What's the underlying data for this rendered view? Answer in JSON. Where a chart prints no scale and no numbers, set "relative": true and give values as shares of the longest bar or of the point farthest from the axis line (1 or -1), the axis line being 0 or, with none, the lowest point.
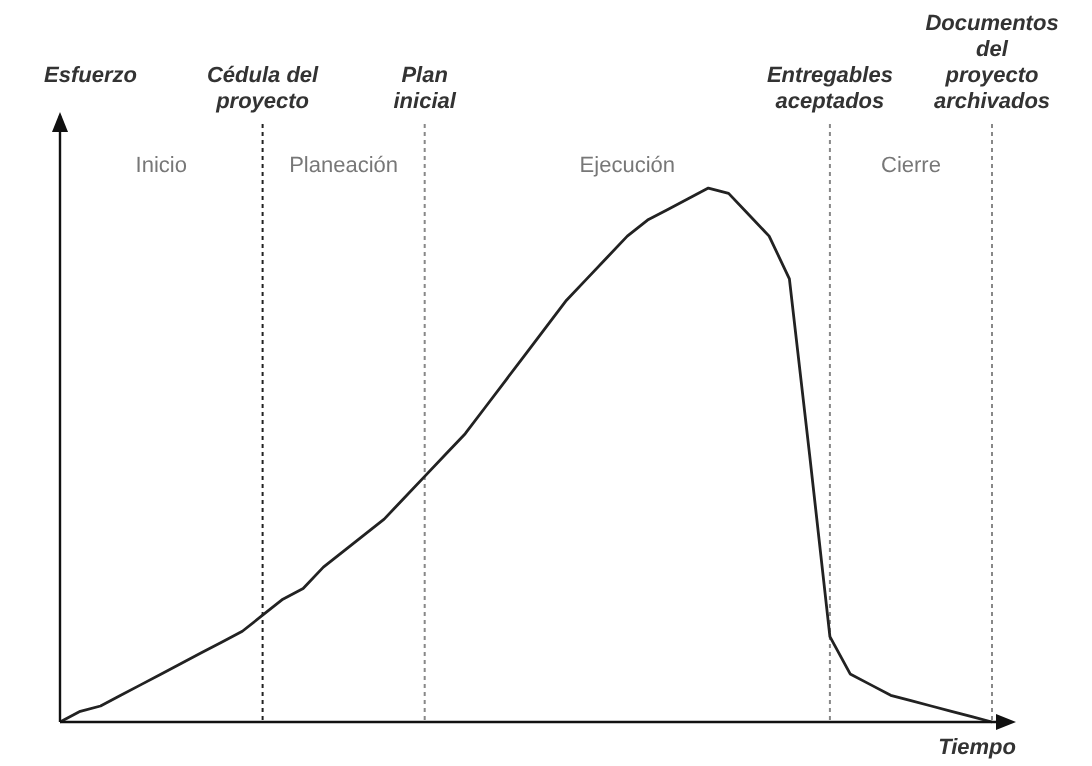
{
  "chart_data": {
    "type": "line",
    "relative": true,
    "grid": "x",
    "ylabel": "Esfuerzo",
    "xlabel": "Tiempo",
    "categories": [
      null,
      null,
      null,
      null,
      null,
      null,
      null,
      null,
      null,
      null,
      null,
      null,
      null,
      null,
      null,
      null,
      null,
      null,
      null,
      null,
      null,
      null,
      null,
      null,
      null,
      null,
      null,
      null,
      null,
      null,
      null,
      null,
      null,
      null,
      null,
      null,
      null,
      null,
      null,
      null,
      null,
      null,
      null,
      null,
      null,
      null,
      null
    ],
    "series": [
      {
        "color": "#222222",
        "values": [
          0,
          0.02,
          0.03,
          0.05,
          0.07,
          0.09,
          0.11,
          0.13,
          0.15,
          0.17,
          0.2,
          0.23,
          0.25,
          0.29,
          0.32,
          0.35,
          0.38,
          0.42,
          0.46,
          0.5,
          0.54,
          0.59,
          0.64,
          0.69,
          0.74,
          0.79,
          0.83,
          0.87,
          0.91,
          0.94,
          0.96,
          0.98,
          1,
          0.99,
          0.95,
          0.91,
          0.83,
          0.5,
          0.16,
          0.09,
          0.07,
          0.05,
          0.04,
          0.03,
          0.02,
          0.01,
          0
        ]
      }
    ],
    "annotations": [
      "Cédula del proyecto",
      "Plan inicial",
      "Entregables aceptados",
      "Documentos del proyecto archivados",
      "Inicio",
      "Planeación",
      "Ejecución",
      "Cierre"
    ]
  }
}
